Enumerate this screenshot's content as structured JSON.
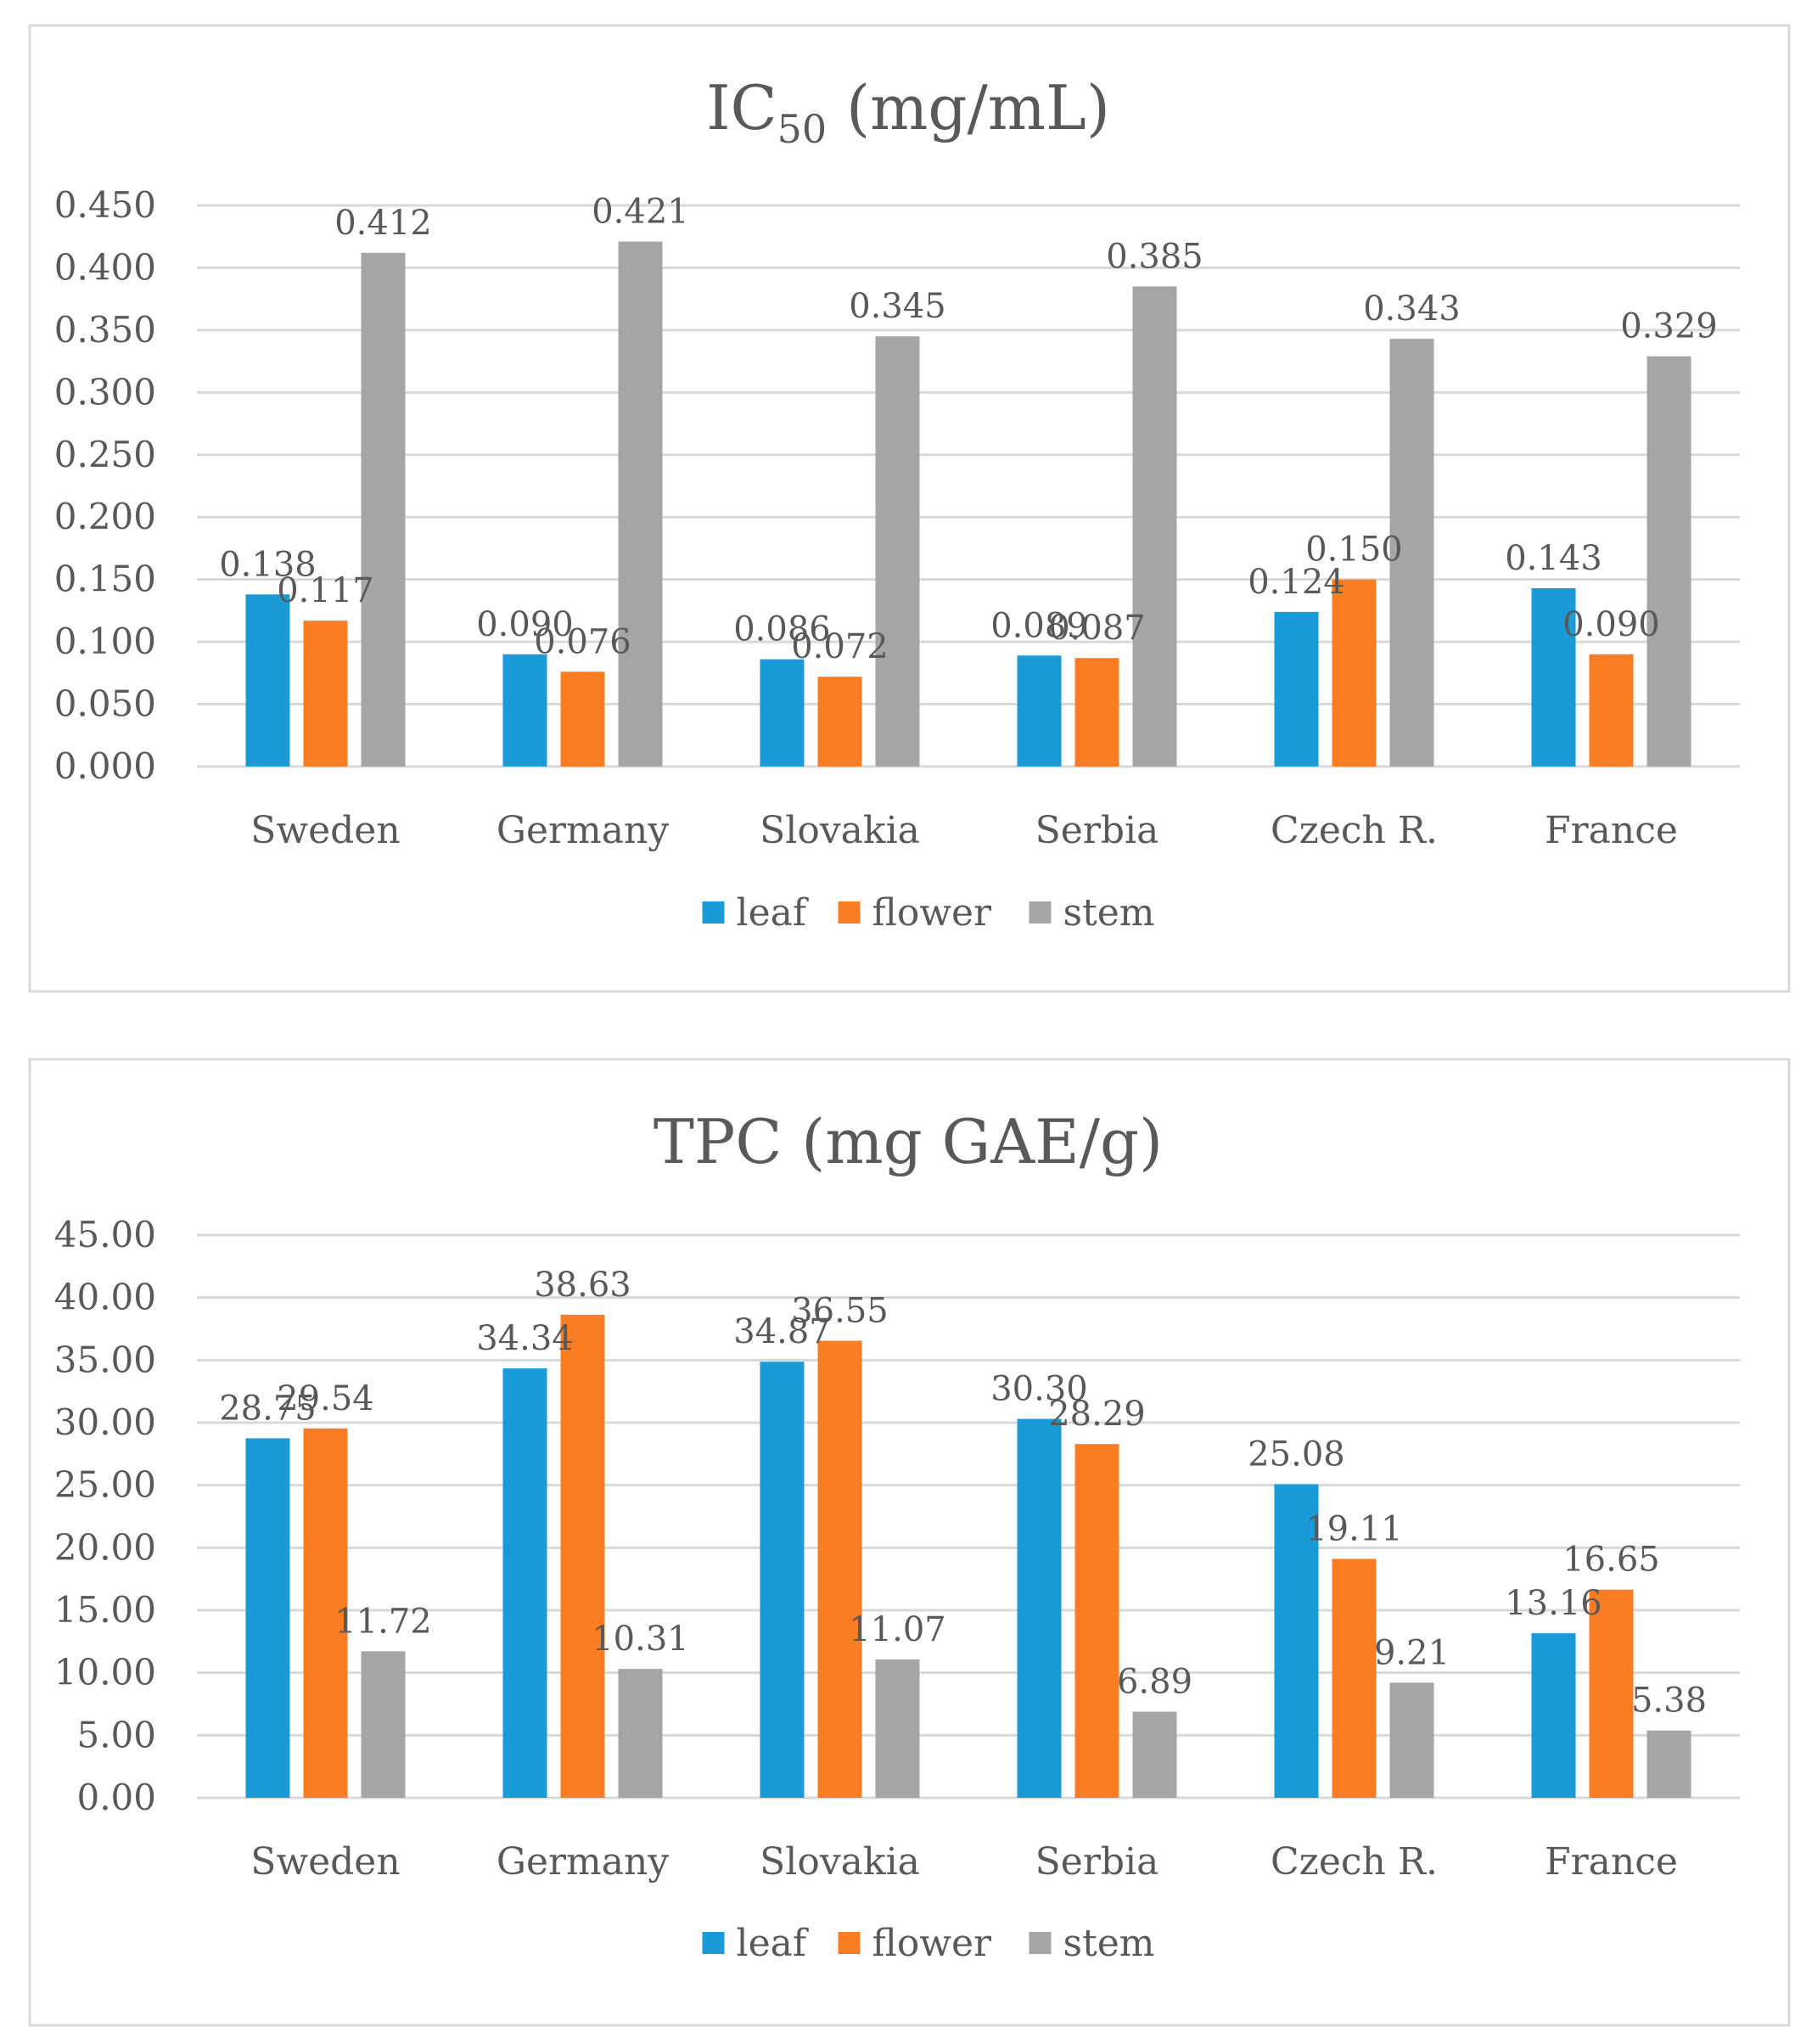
{
  "chart_data": [
    {
      "type": "bar",
      "title": "IC",
      "title_subscript": "50",
      "title_suffix": " (mg/mL)",
      "categories": [
        "Sweden",
        "Germany",
        "Slovakia",
        "Serbia",
        "Czech R.",
        "France"
      ],
      "series": [
        {
          "name": "leaf",
          "color": "#1a9ad6",
          "values": [
            0.138,
            0.09,
            0.086,
            0.089,
            0.124,
            0.143
          ],
          "labels": [
            "0.138",
            "0.090",
            "0.086",
            "0.089",
            "0.124",
            "0.143"
          ]
        },
        {
          "name": "flower",
          "color": "#fb7d23",
          "values": [
            0.117,
            0.076,
            0.072,
            0.087,
            0.15,
            0.09
          ],
          "labels": [
            "0.117",
            "0.076",
            "0.072",
            "0.087",
            "0.150",
            "0.090"
          ]
        },
        {
          "name": "stem",
          "color": "#a5a5a5",
          "values": [
            0.412,
            0.421,
            0.345,
            0.385,
            0.343,
            0.329
          ],
          "labels": [
            "0.412",
            "0.421",
            "0.345",
            "0.385",
            "0.343",
            "0.329"
          ]
        }
      ],
      "ylim": [
        0,
        0.45
      ],
      "yticks": [
        "0.000",
        "0.050",
        "0.100",
        "0.150",
        "0.200",
        "0.250",
        "0.300",
        "0.350",
        "0.400",
        "0.450"
      ],
      "xlabel": "",
      "ylabel": "",
      "grid": true,
      "legend": "bottom"
    },
    {
      "type": "bar",
      "title": "TPC (mg GAE/g)",
      "title_subscript": "",
      "title_suffix": "",
      "categories": [
        "Sweden",
        "Germany",
        "Slovakia",
        "Serbia",
        "Czech R.",
        "France"
      ],
      "series": [
        {
          "name": "leaf",
          "color": "#1a9ad6",
          "values": [
            28.75,
            34.34,
            34.87,
            30.3,
            25.08,
            13.16
          ],
          "labels": [
            "28.75",
            "34.34",
            "34.87",
            "30.30",
            "25.08",
            "13.16"
          ]
        },
        {
          "name": "flower",
          "color": "#fb7d23",
          "values": [
            29.54,
            38.63,
            36.55,
            28.29,
            19.11,
            16.65
          ],
          "labels": [
            "29.54",
            "38.63",
            "36.55",
            "28.29",
            "19.11",
            "16.65"
          ]
        },
        {
          "name": "stem",
          "color": "#a5a5a5",
          "values": [
            11.72,
            10.31,
            11.07,
            6.89,
            9.21,
            5.38
          ],
          "labels": [
            "11.72",
            "10.31",
            "11.07",
            "6.89",
            "9.21",
            "5.38"
          ]
        }
      ],
      "ylim": [
        0,
        45
      ],
      "yticks": [
        "0.00",
        "5.00",
        "10.00",
        "15.00",
        "20.00",
        "25.00",
        "30.00",
        "35.00",
        "40.00",
        "45.00"
      ],
      "xlabel": "",
      "ylabel": "",
      "grid": true,
      "legend": "bottom"
    }
  ]
}
